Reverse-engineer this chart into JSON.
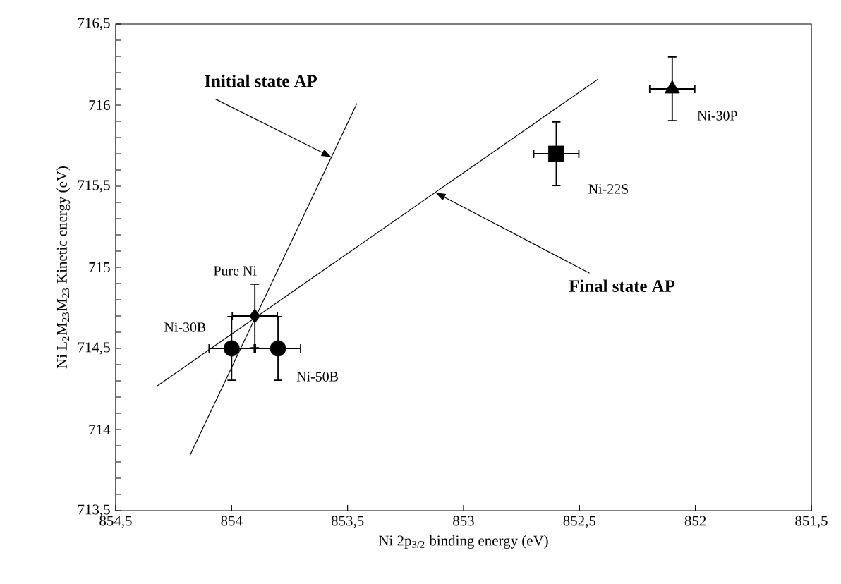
{
  "chart_data": {
    "type": "scatter",
    "xlabel": "Ni 2p$_{3/2}$ binding energy (eV)",
    "ylabel": "Ni L$_{2}$M$_{23}$M$_{23}$ Kinetic energy (eV)",
    "xlim": [
      854.5,
      851.5
    ],
    "ylim": [
      713.5,
      716.5
    ],
    "xticks": [
      {
        "value": 854.5,
        "label": "854,5"
      },
      {
        "value": 854,
        "label": "854"
      },
      {
        "value": 853.5,
        "label": "853,5"
      },
      {
        "value": 853,
        "label": "853"
      },
      {
        "value": 852.5,
        "label": "852,5"
      },
      {
        "value": 852,
        "label": "852"
      },
      {
        "value": 851.5,
        "label": "851,5"
      }
    ],
    "yticks": [
      {
        "value": 713.5,
        "label": "713,5"
      },
      {
        "value": 713.6,
        "label": null
      },
      {
        "value": 713.7,
        "label": null
      },
      {
        "value": 713.8,
        "label": null
      },
      {
        "value": 713.9,
        "label": null
      },
      {
        "value": 714,
        "label": "714"
      },
      {
        "value": 714.1,
        "label": null
      },
      {
        "value": 714.2,
        "label": null
      },
      {
        "value": 714.3,
        "label": null
      },
      {
        "value": 714.4,
        "label": null
      },
      {
        "value": 714.5,
        "label": "714,5"
      },
      {
        "value": 714.6,
        "label": null
      },
      {
        "value": 714.7,
        "label": null
      },
      {
        "value": 714.8,
        "label": null
      },
      {
        "value": 714.9,
        "label": null
      },
      {
        "value": 715,
        "label": "715"
      },
      {
        "value": 715.1,
        "label": null
      },
      {
        "value": 715.2,
        "label": null
      },
      {
        "value": 715.3,
        "label": null
      },
      {
        "value": 715.4,
        "label": null
      },
      {
        "value": 715.5,
        "label": "715,5"
      },
      {
        "value": 715.6,
        "label": null
      },
      {
        "value": 715.7,
        "label": null
      },
      {
        "value": 715.8,
        "label": null
      },
      {
        "value": 715.9,
        "label": null
      },
      {
        "value": 716,
        "label": "716"
      },
      {
        "value": 716.1,
        "label": null
      },
      {
        "value": 716.2,
        "label": null
      },
      {
        "value": 716.3,
        "label": null
      },
      {
        "value": 716.4,
        "label": null
      },
      {
        "value": 716.5,
        "label": "716,5"
      }
    ],
    "grid": false,
    "legend": false,
    "series": [
      {
        "name": "Pure Ni",
        "color": "#000000",
        "marker": "diamond",
        "x": [
          853.9
        ],
        "values": [
          714.7
        ],
        "errors": [
          0.2
        ],
        "xerrors": [
          0.1
        ]
      },
      {
        "name": "Ni-30B",
        "color": "#000000",
        "marker": "circle",
        "x": [
          854.0
        ],
        "values": [
          714.5
        ],
        "errors": [
          0.2
        ],
        "xerrors": [
          0.1
        ]
      },
      {
        "name": "Ni-50B",
        "color": "#000000",
        "marker": "circle",
        "x": [
          853.8
        ],
        "values": [
          714.5
        ],
        "errors": [
          0.2
        ],
        "xerrors": [
          0.1
        ]
      },
      {
        "name": "Ni-22S",
        "color": "#000000",
        "marker": "square",
        "x": [
          852.6
        ],
        "values": [
          715.7
        ],
        "errors": [
          0.2
        ],
        "xerrors": [
          0.1
        ]
      },
      {
        "name": "Ni-30P",
        "color": "#000000",
        "marker": "triangle",
        "x": [
          852.1
        ],
        "values": [
          716.1
        ],
        "errors": [
          0.2
        ],
        "xerrors": [
          0.1
        ]
      },
      {
        "type": "line",
        "color": "#000000",
        "marker": "none",
        "x": [
          854.18,
          853.46
        ],
        "values": [
          713.84,
          716.01
        ]
      },
      {
        "type": "line",
        "color": "#000000",
        "marker": "none",
        "x": [
          854.32,
          852.42
        ],
        "values": [
          714.27,
          716.16
        ]
      }
    ],
    "annotations": [
      {
        "text": "**Initial state AP**",
        "x": 853.57,
        "y": 715.68
      },
      {
        "text": "**Final state AP**",
        "x": 853.12,
        "y": 715.46
      }
    ]
  }
}
